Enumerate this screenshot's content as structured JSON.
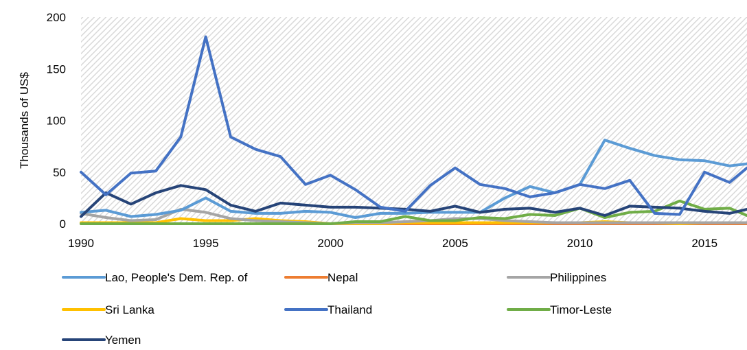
{
  "chart_data": {
    "type": "line",
    "title": "",
    "xlabel": "",
    "ylabel": "Thousands of US$",
    "ylim": [
      0,
      200
    ],
    "xlim": [
      1990,
      2016.7
    ],
    "yticks": [
      "0",
      "50",
      "100",
      "150",
      "200"
    ],
    "xticks": [
      "1990",
      "1995",
      "2000",
      "2005",
      "2010",
      "2015"
    ],
    "grid": "hatched",
    "legend_position": "bottom",
    "x": [
      1990,
      1991,
      1992,
      1993,
      1994,
      1995,
      1996,
      1997,
      1998,
      1999,
      2000,
      2001,
      2002,
      2003,
      2004,
      2005,
      2006,
      2007,
      2008,
      2009,
      2010,
      2011,
      2012,
      2013,
      2014,
      2015,
      2016,
      2016.7
    ],
    "series": [
      {
        "name": "Lao, People's Dem. Rep. of",
        "color": "#5B9BD5",
        "values": [
          11,
          13,
          7,
          9,
          13,
          25,
          12,
          10,
          10,
          12,
          11,
          6,
          10,
          10,
          11,
          11,
          11,
          25,
          36,
          30,
          38,
          81,
          73,
          66,
          62,
          61,
          56,
          58
        ]
      },
      {
        "name": "Nepal",
        "color": "#ED7D31",
        "values": [
          0,
          0,
          0,
          0,
          0,
          0,
          0,
          0,
          0,
          0,
          0,
          0,
          0,
          0,
          0,
          0,
          0,
          0,
          0,
          0,
          0,
          0,
          0,
          0,
          0,
          0,
          0,
          0
        ]
      },
      {
        "name": "Philippines",
        "color": "#A5A5A5",
        "values": [
          10,
          6,
          3,
          4,
          14,
          11,
          5,
          3,
          2,
          1,
          0,
          1,
          1,
          2,
          3,
          5,
          5,
          3,
          2,
          1,
          1,
          1,
          1,
          1,
          1,
          1,
          1,
          1
        ]
      },
      {
        "name": "Sri Lanka",
        "color": "#FFC000",
        "values": [
          1,
          1,
          1,
          1,
          5,
          3,
          3,
          5,
          3,
          2,
          0,
          0,
          0,
          1,
          1,
          1,
          1,
          1,
          1,
          1,
          1,
          2,
          1,
          1,
          0,
          1,
          1,
          1
        ]
      },
      {
        "name": "Thailand",
        "color": "#4472C4",
        "values": [
          50,
          28,
          49,
          51,
          84,
          181,
          84,
          72,
          65,
          38,
          47,
          33,
          16,
          12,
          37,
          54,
          38,
          34,
          26,
          30,
          38,
          34,
          42,
          10,
          9,
          50,
          40,
          54
        ]
      },
      {
        "name": "Timor-Leste",
        "color": "#70AD47",
        "values": [
          0,
          0,
          0,
          0,
          0,
          0,
          0,
          0,
          0,
          0,
          0,
          2,
          2,
          7,
          3,
          3,
          6,
          5,
          9,
          8,
          15,
          6,
          11,
          12,
          22,
          14,
          15,
          8
        ]
      },
      {
        "name": "Yemen",
        "color": "#264478",
        "values": [
          7,
          30,
          19,
          30,
          37,
          33,
          18,
          12,
          20,
          18,
          16,
          16,
          15,
          14,
          12,
          17,
          11,
          14,
          15,
          11,
          15,
          8,
          17,
          16,
          15,
          12,
          10,
          14
        ]
      }
    ]
  }
}
